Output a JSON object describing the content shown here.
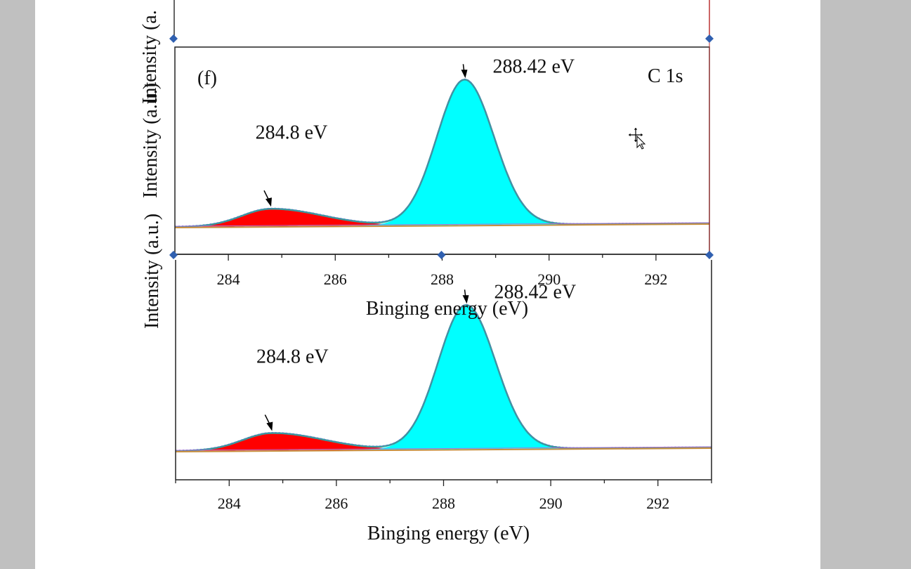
{
  "colors": {
    "workspace_bg": "#c0c0c0",
    "page_bg": "#ffffff",
    "peak1_fill": "#ff0000",
    "peak2_fill": "#00ffff",
    "envelope_line": "#3a9a9a",
    "baseline_line": "#c89040",
    "handle_color": "#3060b0"
  },
  "chart_data": [
    {
      "id": "selected-copy",
      "type": "area",
      "panel_label": "(f)",
      "element_label": "C 1s",
      "xlabel": "Binging energy (eV)",
      "ylabel": "Intensity (a.u.)",
      "xlim": [
        283,
        293
      ],
      "ylim": [
        0,
        1.05
      ],
      "xticks": [
        "284",
        "286",
        "288",
        "290",
        "292"
      ],
      "grid": false,
      "series": [
        {
          "center": 284.8,
          "amplitude": 0.12,
          "sigma_left": 0.55,
          "sigma_right": 0.95
        },
        {
          "center": 288.42,
          "amplitude": 1.0,
          "sigma_left": 0.52,
          "sigma_right": 0.55
        }
      ],
      "annotations": [
        {
          "text": "288.42 eV",
          "x": 288.42
        },
        {
          "text": "284.8 eV",
          "x": 284.8
        }
      ],
      "selected": true
    },
    {
      "id": "original",
      "type": "area",
      "xlabel": "Binging energy (eV)",
      "ylabel": "Intensity (a.u.)",
      "xlim": [
        283,
        293
      ],
      "ylim": [
        0,
        1.05
      ],
      "xticks": [
        "284",
        "286",
        "288",
        "290",
        "292"
      ],
      "grid": false,
      "series": [
        {
          "center": 284.8,
          "amplitude": 0.12,
          "sigma_left": 0.55,
          "sigma_right": 0.95
        },
        {
          "center": 288.42,
          "amplitude": 1.0,
          "sigma_left": 0.52,
          "sigma_right": 0.55
        }
      ],
      "annotations": [
        {
          "text": "288.42 eV",
          "x": 288.42
        },
        {
          "text": "284.8 eV",
          "x": 284.8
        }
      ],
      "selected": false
    }
  ],
  "top_partial": {
    "ylabel_fragment": "Intensity (a."
  },
  "cursor": {
    "icon": "move-cursor-icon"
  }
}
